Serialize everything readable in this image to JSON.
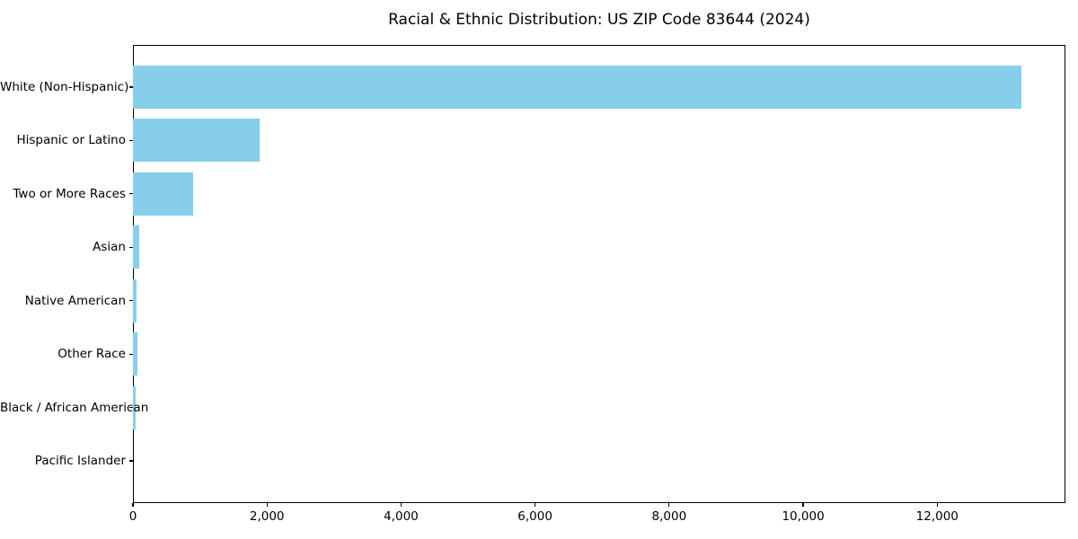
{
  "colors": {
    "bar": "#87CEEB",
    "axis": "#000000",
    "text": "#000000",
    "background": "#FFFFFF"
  },
  "chart_data": {
    "type": "bar",
    "orientation": "horizontal",
    "title": "Racial & Ethnic Distribution: US ZIP Code 83644 (2024)",
    "categories": [
      "White (Non-Hispanic)",
      "Hispanic or Latino",
      "Two or More Races",
      "Asian",
      "Native American",
      "Other Race",
      "Black / African American",
      "Pacific Islander"
    ],
    "values": [
      13250,
      1890,
      900,
      95,
      55,
      62,
      45,
      0
    ],
    "xlabel": "",
    "ylabel": "",
    "xlim": [
      0,
      13913
    ],
    "x_ticks": [
      0,
      2000,
      4000,
      6000,
      8000,
      10000,
      12000
    ],
    "x_tick_labels": [
      "0",
      "2,000",
      "4,000",
      "6,000",
      "8,000",
      "10,000",
      "12,000"
    ],
    "bar_color": "#87CEEB",
    "grid": false,
    "legend": null
  }
}
